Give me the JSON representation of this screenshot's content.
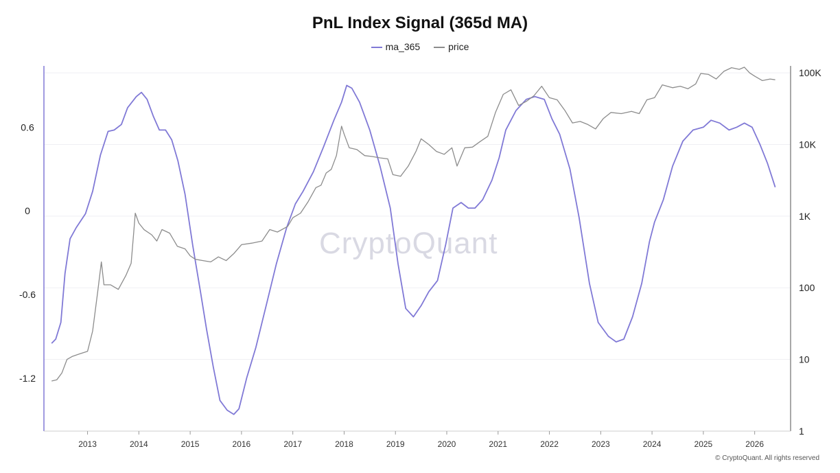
{
  "chart_data": {
    "type": "line",
    "title": "PnL Index Signal (365d MA)",
    "series": [
      {
        "name": "ma_365",
        "color": "#8079d6",
        "axis": "left",
        "points": [
          [
            2012.3,
            -0.95
          ],
          [
            2012.38,
            -0.92
          ],
          [
            2012.48,
            -0.8
          ],
          [
            2012.56,
            -0.45
          ],
          [
            2012.66,
            -0.2
          ],
          [
            2012.78,
            -0.12
          ],
          [
            2012.96,
            -0.02
          ],
          [
            2013.1,
            0.14
          ],
          [
            2013.25,
            0.4
          ],
          [
            2013.4,
            0.57
          ],
          [
            2013.52,
            0.58
          ],
          [
            2013.66,
            0.62
          ],
          [
            2013.78,
            0.74
          ],
          [
            2013.95,
            0.82
          ],
          [
            2014.05,
            0.85
          ],
          [
            2014.16,
            0.8
          ],
          [
            2014.28,
            0.68
          ],
          [
            2014.4,
            0.58
          ],
          [
            2014.52,
            0.58
          ],
          [
            2014.64,
            0.51
          ],
          [
            2014.76,
            0.36
          ],
          [
            2014.9,
            0.12
          ],
          [
            2015.05,
            -0.25
          ],
          [
            2015.2,
            -0.58
          ],
          [
            2015.32,
            -0.85
          ],
          [
            2015.45,
            -1.12
          ],
          [
            2015.58,
            -1.36
          ],
          [
            2015.72,
            -1.43
          ],
          [
            2015.85,
            -1.46
          ],
          [
            2015.95,
            -1.42
          ],
          [
            2016.1,
            -1.2
          ],
          [
            2016.28,
            -0.98
          ],
          [
            2016.48,
            -0.68
          ],
          [
            2016.68,
            -0.38
          ],
          [
            2016.88,
            -0.12
          ],
          [
            2017.05,
            0.05
          ],
          [
            2017.2,
            0.14
          ],
          [
            2017.4,
            0.28
          ],
          [
            2017.6,
            0.46
          ],
          [
            2017.8,
            0.65
          ],
          [
            2017.95,
            0.78
          ],
          [
            2018.05,
            0.9
          ],
          [
            2018.15,
            0.88
          ],
          [
            2018.3,
            0.78
          ],
          [
            2018.5,
            0.58
          ],
          [
            2018.7,
            0.32
          ],
          [
            2018.9,
            0.02
          ],
          [
            2019.05,
            -0.38
          ],
          [
            2019.2,
            -0.7
          ],
          [
            2019.35,
            -0.76
          ],
          [
            2019.5,
            -0.68
          ],
          [
            2019.65,
            -0.58
          ],
          [
            2019.82,
            -0.5
          ],
          [
            2019.98,
            -0.24
          ],
          [
            2020.12,
            0.02
          ],
          [
            2020.28,
            0.06
          ],
          [
            2020.42,
            0.02
          ],
          [
            2020.55,
            0.02
          ],
          [
            2020.7,
            0.08
          ],
          [
            2020.88,
            0.22
          ],
          [
            2021.02,
            0.38
          ],
          [
            2021.15,
            0.58
          ],
          [
            2021.35,
            0.72
          ],
          [
            2021.55,
            0.8
          ],
          [
            2021.72,
            0.82
          ],
          [
            2021.9,
            0.8
          ],
          [
            2022.05,
            0.66
          ],
          [
            2022.2,
            0.55
          ],
          [
            2022.4,
            0.3
          ],
          [
            2022.58,
            -0.05
          ],
          [
            2022.78,
            -0.52
          ],
          [
            2022.95,
            -0.8
          ],
          [
            2023.15,
            -0.9
          ],
          [
            2023.3,
            -0.94
          ],
          [
            2023.45,
            -0.92
          ],
          [
            2023.62,
            -0.76
          ],
          [
            2023.8,
            -0.52
          ],
          [
            2023.95,
            -0.22
          ],
          [
            2024.05,
            -0.08
          ],
          [
            2024.22,
            0.08
          ],
          [
            2024.4,
            0.32
          ],
          [
            2024.6,
            0.5
          ],
          [
            2024.8,
            0.58
          ],
          [
            2025.0,
            0.6
          ],
          [
            2025.15,
            0.65
          ],
          [
            2025.32,
            0.63
          ],
          [
            2025.5,
            0.58
          ],
          [
            2025.65,
            0.6
          ],
          [
            2025.8,
            0.63
          ],
          [
            2025.95,
            0.6
          ],
          [
            2026.1,
            0.48
          ],
          [
            2026.25,
            0.34
          ],
          [
            2026.4,
            0.17
          ]
        ]
      },
      {
        "name": "price",
        "color": "#8c8c8c",
        "axis": "right",
        "points": [
          [
            2012.3,
            5
          ],
          [
            2012.4,
            5.2
          ],
          [
            2012.5,
            6.5
          ],
          [
            2012.6,
            10
          ],
          [
            2012.7,
            11
          ],
          [
            2012.85,
            12
          ],
          [
            2013.0,
            13
          ],
          [
            2013.1,
            25
          ],
          [
            2013.2,
            90
          ],
          [
            2013.27,
            230
          ],
          [
            2013.32,
            110
          ],
          [
            2013.45,
            110
          ],
          [
            2013.6,
            95
          ],
          [
            2013.75,
            150
          ],
          [
            2013.85,
            220
          ],
          [
            2013.9,
            600
          ],
          [
            2013.93,
            1100
          ],
          [
            2014.0,
            800
          ],
          [
            2014.1,
            650
          ],
          [
            2014.25,
            550
          ],
          [
            2014.35,
            450
          ],
          [
            2014.45,
            650
          ],
          [
            2014.6,
            580
          ],
          [
            2014.75,
            380
          ],
          [
            2014.9,
            350
          ],
          [
            2015.0,
            280
          ],
          [
            2015.1,
            250
          ],
          [
            2015.25,
            240
          ],
          [
            2015.4,
            230
          ],
          [
            2015.55,
            270
          ],
          [
            2015.7,
            240
          ],
          [
            2015.85,
            300
          ],
          [
            2016.0,
            400
          ],
          [
            2016.2,
            420
          ],
          [
            2016.4,
            450
          ],
          [
            2016.55,
            650
          ],
          [
            2016.7,
            600
          ],
          [
            2016.9,
            720
          ],
          [
            2017.0,
            950
          ],
          [
            2017.15,
            1100
          ],
          [
            2017.3,
            1600
          ],
          [
            2017.45,
            2500
          ],
          [
            2017.55,
            2700
          ],
          [
            2017.65,
            4000
          ],
          [
            2017.75,
            4500
          ],
          [
            2017.85,
            7000
          ],
          [
            2017.95,
            18000
          ],
          [
            2018.0,
            14000
          ],
          [
            2018.1,
            9000
          ],
          [
            2018.25,
            8500
          ],
          [
            2018.4,
            7000
          ],
          [
            2018.55,
            6800
          ],
          [
            2018.7,
            6500
          ],
          [
            2018.85,
            6300
          ],
          [
            2018.95,
            3800
          ],
          [
            2019.1,
            3600
          ],
          [
            2019.25,
            5000
          ],
          [
            2019.4,
            8000
          ],
          [
            2019.5,
            12000
          ],
          [
            2019.65,
            10000
          ],
          [
            2019.8,
            8000
          ],
          [
            2019.95,
            7300
          ],
          [
            2020.1,
            9000
          ],
          [
            2020.2,
            5000
          ],
          [
            2020.35,
            9000
          ],
          [
            2020.5,
            9200
          ],
          [
            2020.65,
            11000
          ],
          [
            2020.8,
            13000
          ],
          [
            2020.95,
            28000
          ],
          [
            2021.1,
            50000
          ],
          [
            2021.25,
            58000
          ],
          [
            2021.4,
            35000
          ],
          [
            2021.55,
            40000
          ],
          [
            2021.7,
            48000
          ],
          [
            2021.85,
            65000
          ],
          [
            2022.0,
            45000
          ],
          [
            2022.15,
            42000
          ],
          [
            2022.3,
            30000
          ],
          [
            2022.45,
            20000
          ],
          [
            2022.6,
            21000
          ],
          [
            2022.75,
            19000
          ],
          [
            2022.9,
            16500
          ],
          [
            2023.05,
            23000
          ],
          [
            2023.2,
            28000
          ],
          [
            2023.4,
            27000
          ],
          [
            2023.6,
            29000
          ],
          [
            2023.75,
            27000
          ],
          [
            2023.9,
            42000
          ],
          [
            2024.05,
            45000
          ],
          [
            2024.2,
            68000
          ],
          [
            2024.4,
            62000
          ],
          [
            2024.55,
            65000
          ],
          [
            2024.7,
            60000
          ],
          [
            2024.85,
            70000
          ],
          [
            2024.95,
            98000
          ],
          [
            2025.1,
            95000
          ],
          [
            2025.25,
            82000
          ],
          [
            2025.4,
            105000
          ],
          [
            2025.55,
            118000
          ],
          [
            2025.7,
            112000
          ],
          [
            2025.8,
            120000
          ],
          [
            2025.9,
            100000
          ],
          [
            2026.0,
            90000
          ],
          [
            2026.15,
            78000
          ],
          [
            2026.3,
            82000
          ],
          [
            2026.4,
            80000
          ]
        ]
      }
    ],
    "left_axis": {
      "ticks": [
        -1.2,
        -0.6,
        0,
        0.6
      ],
      "tick_labels": [
        "-1.2",
        "-0.6",
        "0",
        "0.6"
      ],
      "ylim": [
        -1.58,
        1.04
      ]
    },
    "right_axis": {
      "scale": "log",
      "ticks": [
        1,
        10,
        100,
        1000,
        10000,
        100000
      ],
      "tick_labels": [
        "1",
        "10",
        "100",
        "1K",
        "10K",
        "100K"
      ],
      "ylim": [
        1,
        125000
      ]
    },
    "x_axis": {
      "ticks": [
        2013,
        2014,
        2015,
        2016,
        2017,
        2018,
        2019,
        2020,
        2021,
        2022,
        2023,
        2024,
        2025,
        2026
      ],
      "tick_labels": [
        "2013",
        "2014",
        "2015",
        "2016",
        "2017",
        "2018",
        "2019",
        "2020",
        "2021",
        "2022",
        "2023",
        "2024",
        "2025",
        "2026"
      ],
      "xlim": [
        2012.15,
        2026.7
      ]
    },
    "legend": {
      "position": "top-center"
    },
    "grid": true
  },
  "watermark": "CryptoQuant",
  "copyright": "© CryptoQuant. All rights reserved"
}
